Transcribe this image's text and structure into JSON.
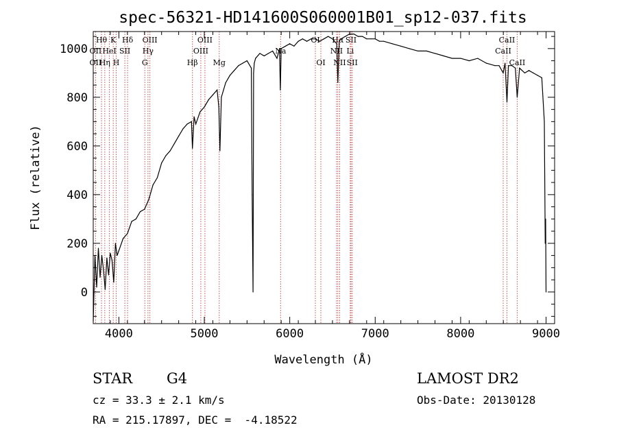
{
  "chart_data": {
    "type": "line",
    "title": "spec-56321-HD141600S060001B01_sp12-037.fits",
    "xlabel": "Wavelength (Å)",
    "ylabel": "Flux (relative)",
    "xlim": [
      3700,
      9100
    ],
    "ylim": [
      -130,
      1070
    ],
    "x_ticks": [
      4000,
      5000,
      6000,
      7000,
      8000,
      9000
    ],
    "y_ticks": [
      0,
      200,
      400,
      600,
      800,
      1000
    ],
    "grid": false,
    "series": [
      {
        "x": [
          3700,
          3720,
          3740,
          3760,
          3780,
          3800,
          3820,
          3840,
          3860,
          3880,
          3900,
          3920,
          3940,
          3960,
          3980,
          4000,
          4050,
          4100,
          4150,
          4200,
          4250,
          4300,
          4350,
          4400,
          4450,
          4500,
          4550,
          4600,
          4650,
          4700,
          4750,
          4800,
          4850,
          4861,
          4880,
          4900,
          4950,
          5000,
          5050,
          5100,
          5150,
          5170,
          5183,
          5200,
          5250,
          5300,
          5350,
          5400,
          5450,
          5500,
          5550,
          5560,
          5570,
          5577,
          5585,
          5600,
          5650,
          5700,
          5750,
          5800,
          5850,
          5880,
          5890,
          5900,
          5950,
          6000,
          6050,
          6100,
          6150,
          6200,
          6250,
          6300,
          6350,
          6400,
          6450,
          6500,
          6550,
          6563,
          6580,
          6600,
          6650,
          6700,
          6750,
          6800,
          6850,
          6900,
          6950,
          7000,
          7050,
          7100,
          7200,
          7300,
          7400,
          7500,
          7600,
          7700,
          7800,
          7900,
          8000,
          8100,
          8200,
          8300,
          8400,
          8450,
          8498,
          8520,
          8542,
          8560,
          8600,
          8640,
          8662,
          8690,
          8750,
          8800,
          8850,
          8900,
          8950,
          8980,
          8990,
          8995,
          9000
        ],
        "y": [
          -120,
          150,
          20,
          180,
          60,
          150,
          90,
          10,
          140,
          70,
          160,
          130,
          40,
          200,
          150,
          170,
          220,
          240,
          290,
          300,
          330,
          340,
          380,
          440,
          470,
          530,
          560,
          580,
          610,
          640,
          670,
          690,
          700,
          590,
          720,
          690,
          740,
          760,
          790,
          810,
          830,
          760,
          580,
          800,
          860,
          890,
          910,
          930,
          940,
          950,
          920,
          400,
          0,
          900,
          940,
          960,
          980,
          970,
          980,
          990,
          960,
          1000,
          830,
          1000,
          1010,
          1020,
          1010,
          1030,
          1040,
          1030,
          1040,
          1040,
          1030,
          1040,
          1050,
          1040,
          1020,
          860,
          1030,
          1040,
          1050,
          1060,
          1060,
          1050,
          1050,
          1040,
          1040,
          1040,
          1030,
          1030,
          1020,
          1010,
          1000,
          990,
          990,
          980,
          970,
          960,
          960,
          950,
          960,
          940,
          930,
          930,
          900,
          940,
          780,
          930,
          930,
          920,
          800,
          920,
          900,
          910,
          900,
          890,
          880,
          700,
          200,
          300,
          0
        ]
      }
    ],
    "lines": [
      {
        "name": "Hθ",
        "wl": 3797,
        "pos": "top",
        "row": 1
      },
      {
        "name": "OII",
        "wl": 3727,
        "pos": "top",
        "row": 2
      },
      {
        "name": "OII",
        "wl": 3727,
        "pos": "top",
        "row": 3
      },
      {
        "name": "K",
        "wl": 3934,
        "pos": "top",
        "row": 1
      },
      {
        "name": "HeI",
        "wl": 3889,
        "pos": "top",
        "row": 2
      },
      {
        "name": "Hη",
        "wl": 3835,
        "pos": "top",
        "row": 3
      },
      {
        "name": "Hδ",
        "wl": 4102,
        "pos": "top",
        "row": 1
      },
      {
        "name": "SII",
        "wl": 4070,
        "pos": "top",
        "row": 2
      },
      {
        "name": "H",
        "wl": 3969,
        "pos": "top",
        "row": 3
      },
      {
        "name": "OIII",
        "wl": 4363,
        "pos": "top",
        "row": 1
      },
      {
        "name": "Hγ",
        "wl": 4341,
        "pos": "top",
        "row": 2
      },
      {
        "name": "G",
        "wl": 4304,
        "pos": "top",
        "row": 3
      },
      {
        "name": "OIII",
        "wl": 5007,
        "pos": "top",
        "row": 1
      },
      {
        "name": "OIII",
        "wl": 4959,
        "pos": "top",
        "row": 2
      },
      {
        "name": "Hβ",
        "wl": 4861,
        "pos": "top",
        "row": 3
      },
      {
        "name": "Mg",
        "wl": 5175,
        "pos": "top",
        "row": 3
      },
      {
        "name": "Na",
        "wl": 5893,
        "pos": "top",
        "row": 2
      },
      {
        "name": "OI",
        "wl": 6300,
        "pos": "top",
        "row": 1
      },
      {
        "name": "OI",
        "wl": 6364,
        "pos": "top",
        "row": 3
      },
      {
        "name": "Hα",
        "wl": 6563,
        "pos": "top",
        "row": 1
      },
      {
        "name": "SII",
        "wl": 6717,
        "pos": "top",
        "row": 1
      },
      {
        "name": "NII",
        "wl": 6548,
        "pos": "top",
        "row": 2
      },
      {
        "name": "Li",
        "wl": 6708,
        "pos": "top",
        "row": 2
      },
      {
        "name": "NII",
        "wl": 6584,
        "pos": "top",
        "row": 3
      },
      {
        "name": "SII",
        "wl": 6731,
        "pos": "top",
        "row": 3
      },
      {
        "name": "CaII",
        "wl": 8542,
        "pos": "top",
        "row": 1
      },
      {
        "name": "CaII",
        "wl": 8498,
        "pos": "top",
        "row": 2
      },
      {
        "name": "CaII",
        "wl": 8662,
        "pos": "top",
        "row": 3
      }
    ],
    "line_color": "#c0504d"
  },
  "info": {
    "class": "STAR",
    "subclass": "G4",
    "survey": "LAMOST DR2",
    "cz": "cz = 33.3 ± 2.1 km/s",
    "obs_date": "Obs-Date: 20130128",
    "radec": "RA = 215.17897, DEC =  -4.18522"
  }
}
